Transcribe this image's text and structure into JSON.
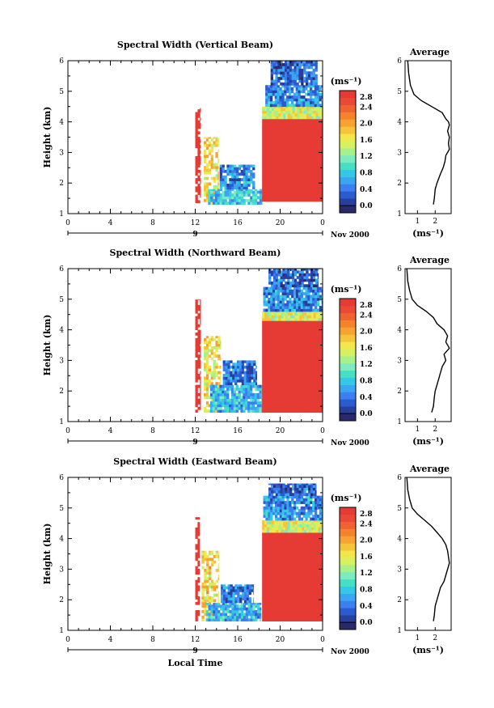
{
  "palette": [
    "#2a2a6b",
    "#283f9e",
    "#2a5cd0",
    "#3c7ff0",
    "#3aa6f2",
    "#35c8e6",
    "#46dfc4",
    "#7cecc0",
    "#a7f08a",
    "#d6f060",
    "#f2e64a",
    "#f6c43a",
    "#f6a332",
    "#f4832c",
    "#f06330",
    "#ea4936",
    "#e63a34"
  ],
  "panels": [
    {
      "title": "Spectral Width (Vertical Beam)",
      "ylabel": "Height (km)",
      "date_label": "9",
      "month_label": "Nov 2000",
      "colorbar_unit": "(ms⁻¹)",
      "colorbar_ticks": [
        "2.8",
        "2.4",
        "2.0",
        "1.6",
        "1.2",
        "0.8",
        "0.4",
        "0.0"
      ],
      "profile_title": "Average",
      "profile_xticks": [
        "1",
        "2"
      ],
      "profile_xlabel": "(ms⁻¹)",
      "xticks": [
        "0",
        "4",
        "8",
        "12",
        "16",
        "20",
        "0"
      ],
      "yticks": [
        "1",
        "2",
        "3",
        "4",
        "5",
        "6"
      ],
      "chart_data": {
        "type": "heatmap",
        "x_axis": "Local Time (h)",
        "xlim": [
          0,
          24
        ],
        "ylim": [
          1,
          6
        ],
        "clim": [
          0.0,
          2.8
        ],
        "regions": [
          {
            "t": [
              12.0,
              12.5
            ],
            "h": [
              1.35,
              4.45
            ],
            "width": 2.8
          },
          {
            "t": [
              12.8,
              14.2
            ],
            "h": [
              1.3,
              3.5
            ],
            "width": 1.8
          },
          {
            "t": [
              13.2,
              18.3
            ],
            "h": [
              1.3,
              1.8
            ],
            "width": 0.9
          },
          {
            "t": [
              14.3,
              17.6
            ],
            "h": [
              1.8,
              2.6
            ],
            "width": 0.6
          },
          {
            "t": [
              18.3,
              24.0
            ],
            "h": [
              1.4,
              4.1
            ],
            "width": 2.8
          },
          {
            "t": [
              18.3,
              24.0
            ],
            "h": [
              4.1,
              4.5
            ],
            "width": 1.6
          },
          {
            "t": [
              18.6,
              24.0
            ],
            "h": [
              4.5,
              5.2
            ],
            "width": 0.6
          },
          {
            "t": [
              19.1,
              23.5
            ],
            "h": [
              5.2,
              6.0
            ],
            "width": 0.4
          }
        ]
      },
      "profile_data": {
        "type": "line",
        "xlim": [
          0.3,
          2.9
        ],
        "ylim": [
          1,
          6
        ],
        "x": [
          1.9,
          1.95,
          2.0,
          2.1,
          2.3,
          2.45,
          2.55,
          2.6,
          2.7,
          2.8,
          2.75,
          2.8,
          2.7,
          2.8,
          2.75,
          2.6,
          2.4,
          1.8,
          1.2,
          0.8,
          0.6,
          0.5,
          0.45
        ],
        "y": [
          1.3,
          1.5,
          1.8,
          2.0,
          2.3,
          2.5,
          2.7,
          2.9,
          3.0,
          3.1,
          3.3,
          3.5,
          3.7,
          3.9,
          4.0,
          4.1,
          4.3,
          4.5,
          4.7,
          4.9,
          5.2,
          5.6,
          6.0
        ]
      }
    },
    {
      "title": "Spectral Width (Northward Beam)",
      "ylabel": "Height (km)",
      "date_label": "9",
      "month_label": "Nov 2000",
      "colorbar_unit": "(ms⁻¹)",
      "colorbar_ticks": [
        "2.8",
        "2.4",
        "2.0",
        "1.6",
        "1.2",
        "0.8",
        "0.4",
        "0.0"
      ],
      "profile_title": "Average",
      "profile_xticks": [
        "1",
        "2"
      ],
      "profile_xlabel": "(ms⁻¹)",
      "xticks": [
        "0",
        "4",
        "8",
        "12",
        "16",
        "20",
        "0"
      ],
      "yticks": [
        "1",
        "2",
        "3",
        "4",
        "5",
        "6"
      ],
      "chart_data": {
        "type": "heatmap",
        "x_axis": "Local Time (h)",
        "xlim": [
          0,
          24
        ],
        "ylim": [
          1,
          6
        ],
        "clim": [
          0.0,
          2.8
        ],
        "regions": [
          {
            "t": [
              12.0,
              12.5
            ],
            "h": [
              1.3,
              5.0
            ],
            "width": 2.8
          },
          {
            "t": [
              12.8,
              14.4
            ],
            "h": [
              1.3,
              3.8
            ],
            "width": 1.8
          },
          {
            "t": [
              13.4,
              18.3
            ],
            "h": [
              1.3,
              2.2
            ],
            "width": 0.8
          },
          {
            "t": [
              14.6,
              17.8
            ],
            "h": [
              2.2,
              3.0
            ],
            "width": 0.5
          },
          {
            "t": [
              18.3,
              24.0
            ],
            "h": [
              1.3,
              4.3
            ],
            "width": 2.8
          },
          {
            "t": [
              18.3,
              24.0
            ],
            "h": [
              4.3,
              4.6
            ],
            "width": 1.6
          },
          {
            "t": [
              18.4,
              24.0
            ],
            "h": [
              4.6,
              5.4
            ],
            "width": 0.6
          },
          {
            "t": [
              18.9,
              23.6
            ],
            "h": [
              5.4,
              6.0
            ],
            "width": 0.4
          }
        ]
      },
      "profile_data": {
        "type": "line",
        "xlim": [
          0.3,
          2.9
        ],
        "ylim": [
          1,
          6
        ],
        "x": [
          1.8,
          1.9,
          1.95,
          2.0,
          2.1,
          2.2,
          2.3,
          2.4,
          2.6,
          2.5,
          2.8,
          2.6,
          2.7,
          2.5,
          2.3,
          2.1,
          1.9,
          1.5,
          1.0,
          0.7,
          0.55,
          0.45,
          0.4
        ],
        "y": [
          1.3,
          1.5,
          1.8,
          2.0,
          2.2,
          2.4,
          2.6,
          2.8,
          3.0,
          3.2,
          3.4,
          3.6,
          3.8,
          4.0,
          4.1,
          4.2,
          4.4,
          4.6,
          4.8,
          5.0,
          5.3,
          5.6,
          6.0
        ]
      }
    },
    {
      "title": "Spectral Width (Eastward Beam)",
      "ylabel": "Height (km)",
      "date_label": "9",
      "month_label": "Nov 2000",
      "colorbar_unit": "(ms⁻¹)",
      "colorbar_ticks": [
        "2.8",
        "2.4",
        "2.0",
        "1.6",
        "1.2",
        "0.8",
        "0.4",
        "0.0"
      ],
      "profile_title": "Average",
      "profile_xticks": [
        "1",
        "2"
      ],
      "profile_xlabel": "(ms⁻¹)",
      "xticks": [
        "0",
        "4",
        "8",
        "12",
        "16",
        "20",
        "0"
      ],
      "yticks": [
        "1",
        "2",
        "3",
        "4",
        "5",
        "6"
      ],
      "xlabel": "Local Time",
      "chart_data": {
        "type": "heatmap",
        "x_axis": "Local Time (h)",
        "xlim": [
          0,
          24
        ],
        "ylim": [
          1,
          6
        ],
        "clim": [
          0.0,
          2.8
        ],
        "regions": [
          {
            "t": [
              12.0,
              12.4
            ],
            "h": [
              1.3,
              4.7
            ],
            "width": 2.8
          },
          {
            "t": [
              12.6,
              14.2
            ],
            "h": [
              1.3,
              3.6
            ],
            "width": 1.8
          },
          {
            "t": [
              13.0,
              18.2
            ],
            "h": [
              1.3,
              1.9
            ],
            "width": 0.8
          },
          {
            "t": [
              14.4,
              17.5
            ],
            "h": [
              1.9,
              2.5
            ],
            "width": 0.5
          },
          {
            "t": [
              18.3,
              24.0
            ],
            "h": [
              1.3,
              4.2
            ],
            "width": 2.8
          },
          {
            "t": [
              18.3,
              24.0
            ],
            "h": [
              4.2,
              4.6
            ],
            "width": 1.6
          },
          {
            "t": [
              18.4,
              24.0
            ],
            "h": [
              4.6,
              5.4
            ],
            "width": 0.6
          },
          {
            "t": [
              18.9,
              23.4
            ],
            "h": [
              5.4,
              5.8
            ],
            "width": 0.4
          }
        ]
      },
      "profile_data": {
        "type": "line",
        "xlim": [
          0.3,
          2.9
        ],
        "ylim": [
          1,
          6
        ],
        "x": [
          1.9,
          1.95,
          2.0,
          2.1,
          2.2,
          2.3,
          2.5,
          2.6,
          2.7,
          2.8,
          2.75,
          2.7,
          2.6,
          2.4,
          2.1,
          1.8,
          1.4,
          1.0,
          0.7,
          0.55,
          0.45,
          0.4
        ],
        "y": [
          1.3,
          1.5,
          1.8,
          2.0,
          2.2,
          2.4,
          2.6,
          2.8,
          3.0,
          3.2,
          3.4,
          3.6,
          3.8,
          4.0,
          4.2,
          4.4,
          4.6,
          4.8,
          5.0,
          5.3,
          5.6,
          6.0
        ]
      }
    }
  ]
}
